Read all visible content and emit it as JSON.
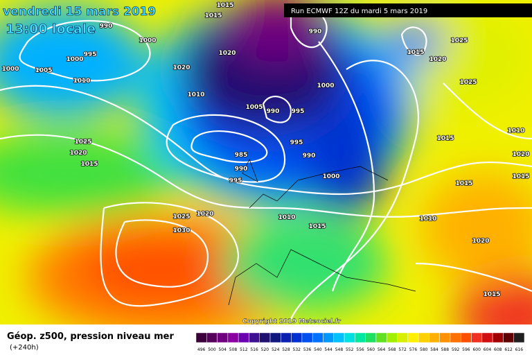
{
  "header": {
    "date": "vendredi 15 mars 2019",
    "time": "13:00 locale",
    "run": "Run ECMWF 12Z du mardi 5 mars 2019"
  },
  "copyright": "Copyright 2019 Meteociel.fr",
  "footer": {
    "title": "Géop. z500, pression niveau mer",
    "lead": "(+240h)"
  },
  "colorbar": {
    "labels": [
      496,
      500,
      504,
      508,
      512,
      516,
      520,
      524,
      528,
      532,
      536,
      540,
      544,
      548,
      552,
      556,
      560,
      564,
      568,
      572,
      576,
      580,
      584,
      588,
      592,
      596,
      600,
      604,
      608,
      612,
      616
    ],
    "colors": [
      "#3c003c",
      "#55005a",
      "#700080",
      "#8a00a0",
      "#6a00b0",
      "#3c1090",
      "#201070",
      "#101880",
      "#0a20b0",
      "#0030d0",
      "#0050f0",
      "#0070ff",
      "#0098ff",
      "#00c0ff",
      "#00e0e0",
      "#00e8a0",
      "#20e060",
      "#60e020",
      "#a0f000",
      "#d8f000",
      "#fff000",
      "#ffd000",
      "#ffb000",
      "#ff9000",
      "#ff7000",
      "#ff5000",
      "#f03020",
      "#d01010",
      "#a00000",
      "#600000",
      "#202020"
    ]
  },
  "isobar_labels": [
    "1015",
    "990",
    "1000",
    "995",
    "1000",
    "1000",
    "1005",
    "1010",
    "1020",
    "1020",
    "1010",
    "1015",
    "990",
    "1015",
    "1025",
    "1020",
    "1025",
    "1000",
    "1005",
    "990",
    "995",
    "995",
    "990",
    "985",
    "990",
    "995",
    "1000",
    "1015",
    "1010",
    "1020",
    "1015",
    "1015",
    "1025",
    "1020",
    "1015",
    "1020",
    "1025",
    "1030",
    "1010",
    "1015",
    "1010",
    "1020",
    "1015"
  ]
}
